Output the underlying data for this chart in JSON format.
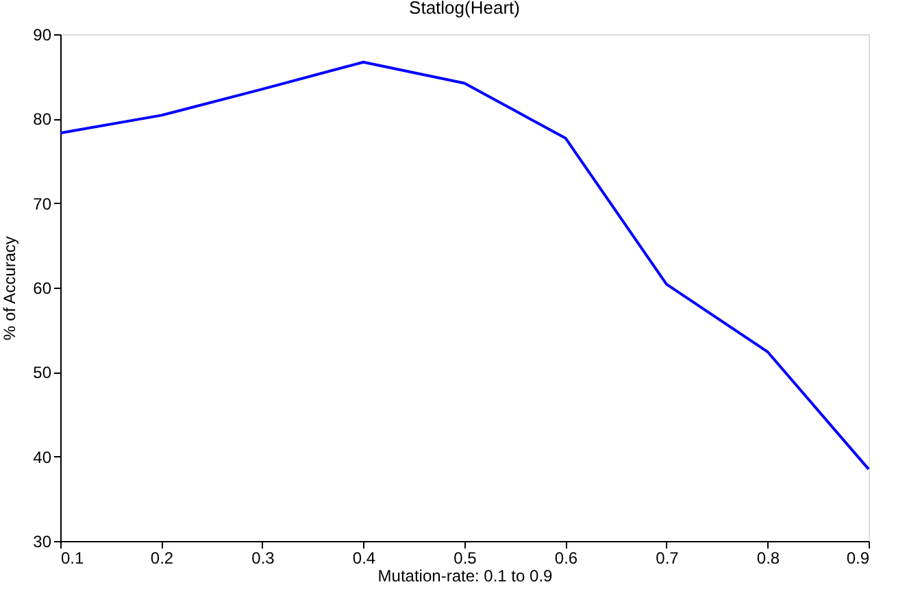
{
  "chart_data": {
    "type": "line",
    "title": "Statlog(Heart)",
    "xlabel": "Mutation-rate: 0.1 to 0.9",
    "ylabel": "% of Accuracy",
    "x": [
      0.1,
      0.2,
      0.3,
      0.4,
      0.5,
      0.6,
      0.7,
      0.8,
      0.9
    ],
    "series": [
      {
        "color": "#0000ff",
        "values": [
          78.3,
          80.4,
          83.5,
          86.7,
          84.2,
          77.7,
          60.4,
          52.4,
          38.5
        ]
      }
    ],
    "xlim": [
      0.1,
      0.9
    ],
    "xticks": [
      0.1,
      0.2,
      0.3,
      0.4,
      0.5,
      0.6,
      0.7,
      0.8,
      0.9
    ],
    "ylim": [
      30,
      90
    ],
    "yticks": [
      30,
      40,
      50,
      60,
      70,
      80,
      90
    ],
    "grid": false,
    "marker": "none",
    "line_style": "solid"
  }
}
